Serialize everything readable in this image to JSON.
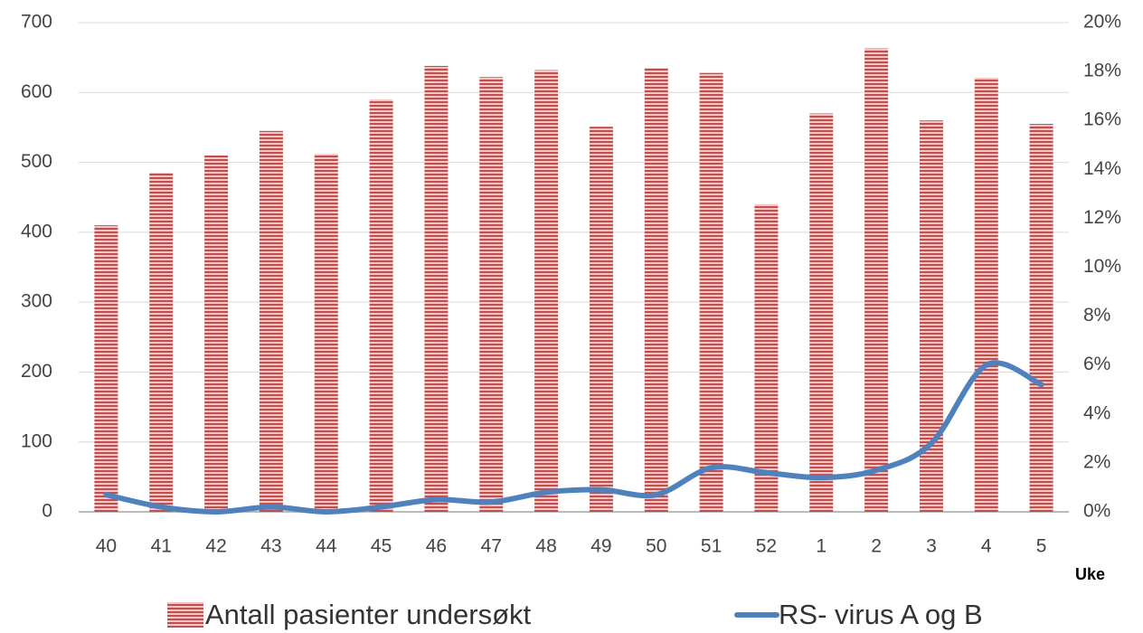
{
  "chart_data": {
    "type": "bar-line",
    "categories": [
      "40",
      "41",
      "42",
      "43",
      "44",
      "45",
      "46",
      "47",
      "48",
      "49",
      "50",
      "51",
      "52",
      "1",
      "2",
      "3",
      "4",
      "5"
    ],
    "x_label": "Uke",
    "series": [
      {
        "name": "Antall pasienter undersøkt",
        "type": "bar",
        "color": "#c0504d",
        "values": [
          410,
          485,
          510,
          545,
          512,
          590,
          638,
          622,
          632,
          551,
          635,
          628,
          440,
          570,
          663,
          560,
          621,
          555
        ]
      },
      {
        "name": "RS- virus A og B",
        "type": "line",
        "axis": "y2",
        "color": "#4f81bd",
        "values": [
          0.7,
          0.2,
          0,
          0.2,
          0,
          0.2,
          0.5,
          0.4,
          0.8,
          0.9,
          0.7,
          1.8,
          1.6,
          1.4,
          1.7,
          2.8,
          6.0,
          5.2
        ]
      }
    ],
    "ylim": [
      0,
      700
    ],
    "yticks": [
      0,
      100,
      200,
      300,
      400,
      500,
      600,
      700
    ],
    "y2lim": [
      0,
      20
    ],
    "y2ticks": [
      {
        "value": 0,
        "label": "0%"
      },
      {
        "value": 2,
        "label": "2%"
      },
      {
        "value": 4,
        "label": "4%"
      },
      {
        "value": 6,
        "label": "6%"
      },
      {
        "value": 8,
        "label": "8%"
      },
      {
        "value": 10,
        "label": "10%"
      },
      {
        "value": 12,
        "label": "12%"
      },
      {
        "value": 14,
        "label": "14%"
      },
      {
        "value": 16,
        "label": "16%"
      },
      {
        "value": 18,
        "label": "18%"
      },
      {
        "value": 20,
        "label": "20%"
      }
    ],
    "grid": true,
    "legend": "bottom"
  }
}
